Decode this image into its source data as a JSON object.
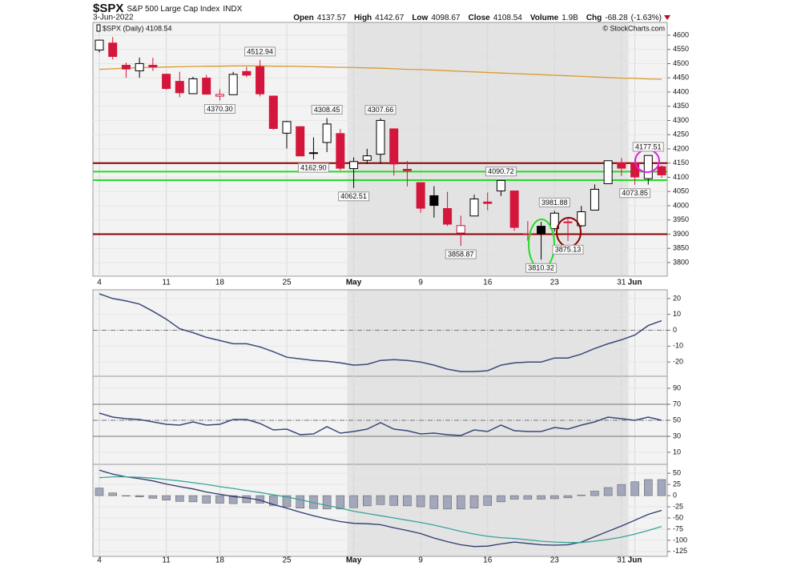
{
  "header": {
    "symbol": "$SPX",
    "name": "S&P 500 Large Cap Index",
    "exchange": "INDX",
    "date": "3-Jun-2022",
    "quote": [
      {
        "name": "Open",
        "value": 4137.57
      },
      {
        "name": "High",
        "value": 4142.67
      },
      {
        "name": "Low",
        "value": 4098.67
      },
      {
        "name": "Close",
        "value": 4108.54
      },
      {
        "name": "Volume",
        "value": 1900000000,
        "label": "1.9B"
      },
      {
        "name": "Chg",
        "value": -68.28
      },
      {
        "value": -1.63,
        "label": "(-1.63%)"
      }
    ],
    "credit": "© StockCharts.com"
  },
  "chart_data": [
    {
      "type": "candlestick",
      "legend": "$SPX (Daily) 4108.54",
      "x": [
        "2022-04-04",
        "2022-04-05",
        "2022-04-06",
        "2022-04-07",
        "2022-04-08",
        "2022-04-11",
        "2022-04-12",
        "2022-04-13",
        "2022-04-14",
        "2022-04-18",
        "2022-04-19",
        "2022-04-20",
        "2022-04-21",
        "2022-04-22",
        "2022-04-25",
        "2022-04-26",
        "2022-04-27",
        "2022-04-28",
        "2022-04-29",
        "2022-05-02",
        "2022-05-03",
        "2022-05-04",
        "2022-05-05",
        "2022-05-06",
        "2022-05-09",
        "2022-05-10",
        "2022-05-11",
        "2022-05-12",
        "2022-05-13",
        "2022-05-16",
        "2022-05-17",
        "2022-05-18",
        "2022-05-19",
        "2022-05-20",
        "2022-05-23",
        "2022-05-24",
        "2022-05-25",
        "2022-05-26",
        "2022-05-27",
        "2022-05-31",
        "2022-06-01",
        "2022-06-02",
        "2022-06-03"
      ],
      "open": [
        4547.97,
        4572.45,
        4494.17,
        4474.65,
        4494.15,
        4462.64,
        4437.59,
        4394.3,
        4449.12,
        4385.63,
        4390.63,
        4472.26,
        4489.17,
        4385.83,
        4255.34,
        4278.14,
        4186.52,
        4222.58,
        4253.75,
        4130.61,
        4159.78,
        4181.18,
        4270.43,
        4128.17,
        4081.27,
        4035.18,
        3990.08,
        3903.95,
        3963.9,
        4013.02,
        4052,
        4051.98,
        3899,
        3927.76,
        3919.42,
        3942.94,
        3929.59,
        3984.6,
        4077.43,
        4151.09,
        4149.78,
        4095.41,
        4137.57
      ],
      "high": [
        4583.5,
        4593.45,
        4503.94,
        4521.16,
        4520.41,
        4464.35,
        4471,
        4453.92,
        4460.46,
        4410.31,
        4471.03,
        4488.29,
        4512.94,
        4385.83,
        4299.02,
        4278.14,
        4240.71,
        4308.45,
        4269.68,
        4169.81,
        4200.1,
        4307.66,
        4270.43,
        4157.69,
        4081.27,
        4068.82,
        4049.09,
        3964.8,
        4038.88,
        4046.46,
        4090.72,
        4051.98,
        3945.96,
        3943.42,
        3981.88,
        3955.68,
        3999.33,
        4075.14,
        4158.49,
        4168.34,
        4166.54,
        4177.51,
        4142.67
      ],
      "low": [
        4539.21,
        4514.17,
        4450.04,
        4450.3,
        4474.6,
        4408.38,
        4381.34,
        4392.7,
        4390.77,
        4370.3,
        4390.63,
        4452.91,
        4384.47,
        4267.62,
        4200.82,
        4175.04,
        4162.9,
        4188.63,
        4124.28,
        4062.51,
        4147.08,
        4148.91,
        4106.01,
        4067.91,
        3975.48,
        3958.17,
        3928.82,
        3858.87,
        3963.9,
        3983.99,
        4033.93,
        3911.91,
        3876.73,
        3810.32,
        3909.04,
        3875.13,
        3925.03,
        3984.6,
        4077.43,
        4104.88,
        4073.85,
        4074.37,
        4098.67
      ],
      "close": [
        4582.64,
        4525.12,
        4481.15,
        4500.21,
        4488.28,
        4412.53,
        4397.45,
        4446.59,
        4392.59,
        4391.69,
        4462.21,
        4459.45,
        4393.66,
        4271.78,
        4296.12,
        4175.2,
        4183.96,
        4287.5,
        4131.93,
        4155.38,
        4175.48,
        4300.17,
        4146.87,
        4123.34,
        3991.24,
        4001.05,
        3935.18,
        3930.08,
        4023.89,
        4008.01,
        4088.85,
        3923.68,
        3900.79,
        3901.36,
        3973.75,
        3941.48,
        3978.73,
        4057.84,
        4158.24,
        4132.15,
        4101.23,
        4176.82,
        4108.54
      ],
      "up_color": "#000000",
      "down_color": "#d4163c",
      "ma": {
        "color": "#d99a2b",
        "values": [
          4480,
          4482,
          4484,
          4486,
          4487,
          4488,
          4489,
          4490,
          4491,
          4491,
          4492,
          4492,
          4492,
          4491,
          4491,
          4490,
          4489,
          4488,
          4487,
          4486,
          4485,
          4484,
          4482,
          4480,
          4479,
          4477,
          4475,
          4473,
          4471,
          4469,
          4467,
          4465,
          4463,
          4461,
          4459,
          4457,
          4455,
          4453,
          4451,
          4449,
          4448,
          4446,
          4445
        ]
      },
      "levels": [
        {
          "value": 4150,
          "color": "#8b0000"
        },
        {
          "value": 4120,
          "color": "#22dd22"
        },
        {
          "value": 4090,
          "color": "#22dd22"
        },
        {
          "value": 3900,
          "color": "#8b0000"
        }
      ],
      "annotations": [
        {
          "x": "2022-04-21",
          "value": 4512.94,
          "label": "4512.94",
          "position": "above"
        },
        {
          "x": "2022-04-18",
          "value": 4370.3,
          "label": "4370.30",
          "position": "below"
        },
        {
          "x": "2022-04-28",
          "value": 4308.45,
          "label": "4308.45",
          "position": "above"
        },
        {
          "x": "2022-05-04",
          "value": 4307.66,
          "label": "4307.66",
          "position": "above"
        },
        {
          "x": "2022-04-27",
          "value": 4162.9,
          "label": "4162.90",
          "position": "below"
        },
        {
          "x": "2022-05-02",
          "value": 4062.51,
          "label": "4062.51",
          "position": "below"
        },
        {
          "x": "2022-05-17",
          "value": 4090.72,
          "label": "4090.72",
          "position": "above"
        },
        {
          "x": "2022-05-23",
          "value": 3981.88,
          "label": "3981.88",
          "position": "above"
        },
        {
          "x": "2022-05-12",
          "value": 3858.87,
          "label": "3858.87",
          "position": "below"
        },
        {
          "x": "2022-05-20",
          "value": 3810.32,
          "label": "3810.32",
          "position": "below"
        },
        {
          "x": "2022-05-24",
          "value": 3875.13,
          "label": "3875.13",
          "position": "below"
        },
        {
          "x": "2022-06-02",
          "value": 4177.51,
          "label": "4177.51",
          "position": "above"
        },
        {
          "x": "2022-06-01",
          "value": 4073.85,
          "label": "4073.85",
          "position": "below"
        }
      ],
      "ylim": [
        3752,
        4645
      ],
      "yticks": [
        3800,
        3850,
        3900,
        3950,
        4000,
        4050,
        4100,
        4150,
        4200,
        4250,
        4300,
        4350,
        4400,
        4450,
        4500,
        4550,
        4600
      ],
      "xticks": [
        {
          "value": "2022-04-04",
          "label": "4"
        },
        {
          "value": "2022-04-11",
          "label": "11"
        },
        {
          "value": "2022-04-18",
          "label": "18"
        },
        {
          "value": "2022-04-25",
          "label": "25"
        },
        {
          "value": "2022-05-02",
          "label": "May"
        },
        {
          "value": "2022-05-09",
          "label": "9"
        },
        {
          "value": "2022-05-16",
          "label": "16"
        },
        {
          "value": "2022-05-23",
          "label": "23"
        },
        {
          "value": "2022-05-31",
          "label": "31"
        },
        {
          "value": "2022-06-01",
          "label": "Jun"
        }
      ]
    },
    {
      "type": "line",
      "color": "#3a4a78",
      "values": [
        23,
        20,
        18.5,
        16.5,
        12,
        7,
        1,
        -1.5,
        -4.5,
        -6.5,
        -8.5,
        -8.5,
        -10.5,
        -13.5,
        -17,
        -18,
        -19,
        -19.5,
        -20.5,
        -22,
        -21.5,
        -19,
        -18.5,
        -19,
        -20,
        -22,
        -24.5,
        -26,
        -26,
        -25.5,
        -22,
        -20.5,
        -20,
        -20,
        -17.5,
        -17.5,
        -15,
        -11.5,
        -8.5,
        -6,
        -3,
        3,
        6
      ],
      "ylim": [
        -29,
        25.5
      ],
      "yticks": [
        -20,
        -10,
        0,
        10,
        20
      ],
      "dashed_lines": [
        0
      ],
      "solid_lines": []
    },
    {
      "type": "line",
      "color": "#3a4a78",
      "values": [
        59,
        54,
        52,
        51,
        48,
        45,
        44,
        48,
        44,
        45,
        51,
        51,
        46,
        38,
        39,
        32,
        33,
        42,
        34,
        36,
        39,
        47,
        39,
        37,
        33,
        34,
        32,
        31,
        38,
        36,
        44,
        37,
        36,
        36,
        41,
        39,
        44,
        48,
        54,
        52,
        50,
        54,
        50
      ],
      "ylim": [
        -5,
        105
      ],
      "yticks": [
        10,
        30,
        50,
        70,
        90
      ],
      "dashed_lines": [
        50
      ],
      "solid_lines": [
        30,
        70
      ]
    },
    {
      "type": "macd",
      "series": [
        {
          "kind": "line",
          "color": "#2d3a6e",
          "values": [
            57,
            48,
            42,
            38,
            33,
            26,
            20,
            15,
            8,
            3,
            -2,
            -5,
            -10,
            -20,
            -28,
            -37,
            -45,
            -52,
            -58,
            -62,
            -63,
            -65,
            -72,
            -78,
            -85,
            -95,
            -103,
            -110,
            -114,
            -113,
            -108,
            -104,
            -107,
            -110,
            -111,
            -110,
            -104,
            -92,
            -80,
            -68,
            -55,
            -42,
            -33
          ]
        },
        {
          "kind": "line",
          "color": "#3aa49a",
          "values": [
            40,
            42,
            42,
            41,
            39,
            36,
            33,
            29,
            25,
            20,
            16,
            11,
            7,
            2,
            -3,
            -9,
            -16,
            -22,
            -28,
            -35,
            -40,
            -45,
            -50,
            -55,
            -60,
            -66,
            -73,
            -80,
            -86,
            -91,
            -94,
            -96,
            -99,
            -102,
            -104,
            -105,
            -105,
            -102,
            -98,
            -93,
            -86,
            -78,
            -69
          ]
        },
        {
          "kind": "bar",
          "color": "#a3a7bb",
          "values": [
            17,
            6,
            0,
            -3,
            -6,
            -10,
            -13,
            -14,
            -17,
            -17,
            -18,
            -16,
            -17,
            -22,
            -25,
            -28,
            -29,
            -30,
            -30,
            -27,
            -23,
            -20,
            -22,
            -23,
            -25,
            -29,
            -30,
            -30,
            -28,
            -22,
            -14,
            -8,
            -8,
            -8,
            -7,
            -5,
            1,
            10,
            18,
            25,
            31,
            36,
            36
          ]
        }
      ],
      "ylim": [
        -136,
        70
      ],
      "yticks": [
        -125,
        -100,
        -75,
        -50,
        -25,
        0,
        25,
        50
      ]
    }
  ]
}
